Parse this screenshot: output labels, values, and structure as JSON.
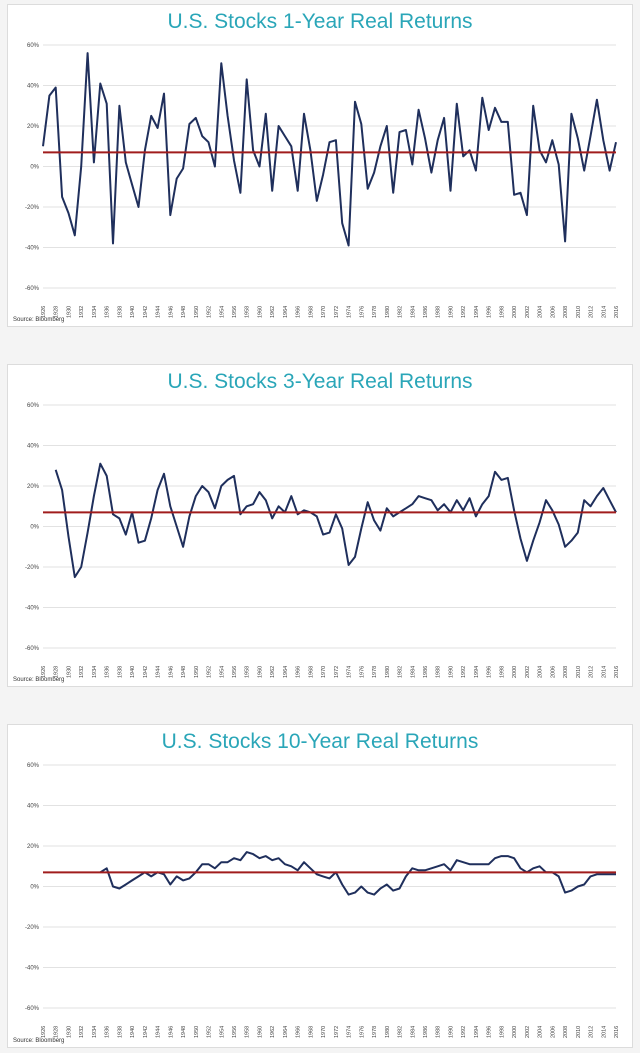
{
  "colors": {
    "series": "#1f2f5c",
    "reference": "#a01c1c",
    "grid": "#d9d9d9",
    "title": "#2aa6b8"
  },
  "chart_data": [
    {
      "type": "line",
      "title": "U.S. Stocks 1-Year Real Returns",
      "source": "Source: Bloomberg",
      "xlim": [
        1926,
        2016
      ],
      "ylim": [
        -60,
        60
      ],
      "ytick_labels": [
        "60%",
        "40%",
        "20%",
        "0%",
        "-20%",
        "-40%",
        "-60%"
      ],
      "x_tick_labels": [
        "1926",
        "1928",
        "1930",
        "1932",
        "1934",
        "1936",
        "1938",
        "1940",
        "1942",
        "1944",
        "1946",
        "1948",
        "1950",
        "1952",
        "1954",
        "1956",
        "1958",
        "1960",
        "1962",
        "1964",
        "1966",
        "1968",
        "1970",
        "1972",
        "1974",
        "1976",
        "1978",
        "1980",
        "1982",
        "1984",
        "1986",
        "1988",
        "1990",
        "1992",
        "1994",
        "1996",
        "1998",
        "2000",
        "2002",
        "2004",
        "2006",
        "2008",
        "2010",
        "2012",
        "2014",
        "2016"
      ],
      "reference_value": 7,
      "series": [
        {
          "x": [
            1926,
            1927,
            1928,
            1929,
            1930,
            1931,
            1932,
            1933,
            1934,
            1935,
            1936,
            1937,
            1938,
            1939,
            1940,
            1941,
            1942,
            1943,
            1944,
            1945,
            1946,
            1947,
            1948,
            1949,
            1950,
            1951,
            1952,
            1953,
            1954,
            1955,
            1956,
            1957,
            1958,
            1959,
            1960,
            1961,
            1962,
            1963,
            1964,
            1965,
            1966,
            1967,
            1968,
            1969,
            1970,
            1971,
            1972,
            1973,
            1974,
            1975,
            1976,
            1977,
            1978,
            1979,
            1980,
            1981,
            1982,
            1983,
            1984,
            1985,
            1986,
            1987,
            1988,
            1989,
            1990,
            1991,
            1992,
            1993,
            1994,
            1995,
            1996,
            1997,
            1998,
            1999,
            2000,
            2001,
            2002,
            2003,
            2004,
            2005,
            2006,
            2007,
            2008,
            2009,
            2010,
            2011,
            2012,
            2013,
            2014,
            2015,
            2016
          ],
          "values": [
            10,
            35,
            39,
            -15,
            -23,
            -34,
            0,
            56,
            2,
            41,
            31,
            -38,
            30,
            2,
            -9,
            -20,
            8,
            25,
            19,
            36,
            -24,
            -6,
            -1,
            21,
            24,
            15,
            12,
            0,
            51,
            25,
            3,
            -13,
            43,
            8,
            0,
            26,
            -12,
            20,
            15,
            10,
            -12,
            26,
            8,
            -17,
            -4,
            12,
            13,
            -28,
            -39,
            32,
            21,
            -11,
            -3,
            10,
            20,
            -13,
            17,
            18,
            1,
            28,
            14,
            -3,
            13,
            24,
            -12,
            31,
            5,
            8,
            -2,
            34,
            18,
            29,
            22,
            22,
            -14,
            -13,
            -24,
            30,
            8,
            2,
            13,
            1,
            -37,
            26,
            14,
            -2,
            15,
            33,
            13,
            -2,
            12
          ]
        }
      ]
    },
    {
      "type": "line",
      "title": "U.S. Stocks 3-Year Real Returns",
      "source": "Source: Bloomberg",
      "xlim": [
        1926,
        2016
      ],
      "ylim": [
        -60,
        60
      ],
      "ytick_labels": [
        "60%",
        "40%",
        "20%",
        "0%",
        "-20%",
        "-40%",
        "-60%"
      ],
      "x_tick_labels": [
        "1926",
        "1928",
        "1930",
        "1932",
        "1934",
        "1936",
        "1938",
        "1940",
        "1942",
        "1944",
        "1946",
        "1948",
        "1950",
        "1952",
        "1954",
        "1956",
        "1958",
        "1960",
        "1962",
        "1964",
        "1966",
        "1968",
        "1970",
        "1972",
        "1974",
        "1976",
        "1978",
        "1980",
        "1982",
        "1984",
        "1986",
        "1988",
        "1990",
        "1992",
        "1994",
        "1996",
        "1998",
        "2000",
        "2002",
        "2004",
        "2006",
        "2008",
        "2010",
        "2012",
        "2014",
        "2016"
      ],
      "reference_value": 7,
      "series": [
        {
          "x": [
            1928,
            1929,
            1930,
            1931,
            1932,
            1933,
            1934,
            1935,
            1936,
            1937,
            1938,
            1939,
            1940,
            1941,
            1942,
            1943,
            1944,
            1945,
            1946,
            1947,
            1948,
            1949,
            1950,
            1951,
            1952,
            1953,
            1954,
            1955,
            1956,
            1957,
            1958,
            1959,
            1960,
            1961,
            1962,
            1963,
            1964,
            1965,
            1966,
            1967,
            1968,
            1969,
            1970,
            1971,
            1972,
            1973,
            1974,
            1975,
            1976,
            1977,
            1978,
            1979,
            1980,
            1981,
            1982,
            1983,
            1984,
            1985,
            1986,
            1987,
            1988,
            1989,
            1990,
            1991,
            1992,
            1993,
            1994,
            1995,
            1996,
            1997,
            1998,
            1999,
            2000,
            2001,
            2002,
            2003,
            2004,
            2005,
            2006,
            2007,
            2008,
            2009,
            2010,
            2011,
            2012,
            2013,
            2014,
            2015,
            2016
          ],
          "values": [
            28,
            18,
            -5,
            -25,
            -20,
            -3,
            15,
            31,
            25,
            6,
            4,
            -4,
            7,
            -8,
            -7,
            4,
            18,
            26,
            10,
            0,
            -10,
            5,
            15,
            20,
            17,
            9,
            20,
            23,
            25,
            6,
            10,
            11,
            17,
            13,
            4,
            10,
            7,
            15,
            6,
            8,
            7,
            5,
            -4,
            -3,
            6,
            -1,
            -19,
            -15,
            -1,
            12,
            3,
            -2,
            9,
            5,
            7,
            9,
            11,
            15,
            14,
            13,
            8,
            11,
            7,
            13,
            8,
            14,
            5,
            11,
            15,
            27,
            23,
            24,
            8,
            -6,
            -17,
            -7,
            2,
            13,
            8,
            1,
            -10,
            -7,
            -3,
            13,
            10,
            15,
            19,
            13,
            7
          ]
        }
      ]
    },
    {
      "type": "line",
      "title": "U.S. Stocks 10-Year Real Returns",
      "source": "Source: Bloomberg",
      "xlim": [
        1926,
        2016
      ],
      "ylim": [
        -60,
        60
      ],
      "ytick_labels": [
        "60%",
        "40%",
        "20%",
        "0%",
        "-20%",
        "-40%",
        "-60%"
      ],
      "x_tick_labels": [
        "1926",
        "1928",
        "1930",
        "1932",
        "1934",
        "1936",
        "1938",
        "1940",
        "1942",
        "1944",
        "1946",
        "1948",
        "1950",
        "1952",
        "1954",
        "1956",
        "1958",
        "1960",
        "1962",
        "1964",
        "1966",
        "1968",
        "1970",
        "1972",
        "1974",
        "1976",
        "1978",
        "1980",
        "1982",
        "1984",
        "1986",
        "1988",
        "1990",
        "1992",
        "1994",
        "1996",
        "1998",
        "2000",
        "2002",
        "2004",
        "2006",
        "2008",
        "2010",
        "2012",
        "2014",
        "2016"
      ],
      "reference_value": 7,
      "series": [
        {
          "x": [
            1935,
            1936,
            1937,
            1938,
            1939,
            1940,
            1941,
            1942,
            1943,
            1944,
            1945,
            1946,
            1947,
            1948,
            1949,
            1950,
            1951,
            1952,
            1953,
            1954,
            1955,
            1956,
            1957,
            1958,
            1959,
            1960,
            1961,
            1962,
            1963,
            1964,
            1965,
            1966,
            1967,
            1968,
            1969,
            1970,
            1971,
            1972,
            1973,
            1974,
            1975,
            1976,
            1977,
            1978,
            1979,
            1980,
            1981,
            1982,
            1983,
            1984,
            1985,
            1986,
            1987,
            1988,
            1989,
            1990,
            1991,
            1992,
            1993,
            1994,
            1995,
            1996,
            1997,
            1998,
            1999,
            2000,
            2001,
            2002,
            2003,
            2004,
            2005,
            2006,
            2007,
            2008,
            2009,
            2010,
            2011,
            2012,
            2013,
            2014,
            2015,
            2016
          ],
          "values": [
            7,
            9,
            0,
            -1,
            1,
            3,
            5,
            7,
            5,
            7,
            6,
            1,
            5,
            3,
            4,
            7,
            11,
            11,
            9,
            12,
            12,
            14,
            13,
            17,
            16,
            14,
            15,
            13,
            14,
            11,
            10,
            8,
            12,
            9,
            6,
            5,
            4,
            7,
            1,
            -4,
            -3,
            0,
            -3,
            -4,
            -1,
            1,
            -2,
            -1,
            5,
            9,
            8,
            8,
            9,
            10,
            11,
            8,
            13,
            12,
            11,
            11,
            11,
            11,
            14,
            15,
            15,
            14,
            9,
            7,
            9,
            10,
            7,
            7,
            5,
            -3,
            -2,
            0,
            1,
            5,
            6,
            6,
            6,
            6
          ]
        }
      ]
    }
  ]
}
